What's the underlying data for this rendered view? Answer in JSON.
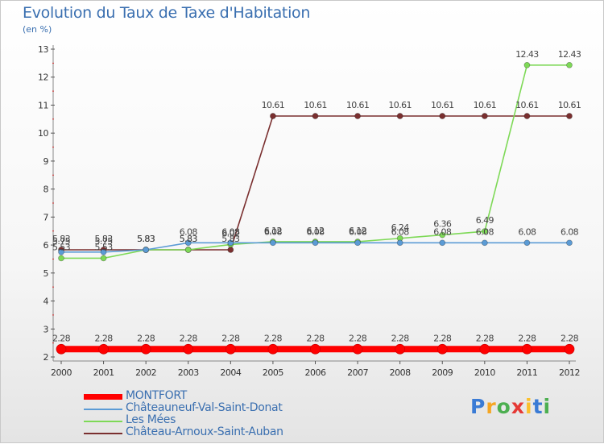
{
  "chart_data": {
    "type": "line",
    "title": "Evolution du Taux de Taxe d'Habitation",
    "subtitle": "(en %)",
    "xlabel": "",
    "ylabel": "",
    "ylim": [
      2,
      13
    ],
    "yticks": [
      "2",
      "3",
      "4",
      "5",
      "6",
      "7",
      "8",
      "9",
      "10",
      "11",
      "12",
      "13"
    ],
    "categories": [
      "2000",
      "2001",
      "2002",
      "2003",
      "2004",
      "2005",
      "2006",
      "2007",
      "2008",
      "2009",
      "2010",
      "2011",
      "2012"
    ],
    "grid": false,
    "legend_position": "bottom-left",
    "series": [
      {
        "name": "MONTFORT",
        "color": "#ff0000",
        "values": [
          2.28,
          2.28,
          2.28,
          2.28,
          2.28,
          2.28,
          2.28,
          2.28,
          2.28,
          2.28,
          2.28,
          2.28,
          2.28
        ],
        "labels": [
          "2.28",
          "2.28",
          "2.28",
          "2.28",
          "2.28",
          "2.28",
          "2.28",
          "2.28",
          "2.28",
          "2.28",
          "2.28",
          "2.28",
          "2.28"
        ]
      },
      {
        "name": "Châteauneuf-Val-Saint-Donat",
        "color": "#5b9bd5",
        "values": [
          5.75,
          5.75,
          5.83,
          6.08,
          6.08,
          6.08,
          6.08,
          6.08,
          6.08,
          6.08,
          6.08,
          6.08,
          6.08
        ],
        "labels": [
          "5.75",
          "5.75",
          "5.83",
          "6.08",
          "6.08",
          "6.08",
          "6.08",
          "6.08",
          "6.08",
          "6.08",
          "6.08",
          "6.08",
          "6.08"
        ]
      },
      {
        "name": "Les Mées",
        "color": "#7ed957",
        "values": [
          5.53,
          5.53,
          5.83,
          5.83,
          6.02,
          6.12,
          6.12,
          6.12,
          6.24,
          6.36,
          6.49,
          12.43,
          12.43
        ],
        "labels": [
          "5.53",
          "5.53",
          "5.83",
          "5.83",
          "6.02",
          "6.12",
          "6.12",
          "6.12",
          "6.24",
          "6.36",
          "6.49",
          "12.43",
          "12.43"
        ]
      },
      {
        "name": "Château-Arnoux-Saint-Auban",
        "color": "#7a2f2f",
        "values": [
          5.83,
          5.83,
          5.83,
          5.83,
          5.83,
          10.61,
          10.61,
          10.61,
          10.61,
          10.61,
          10.61,
          10.61,
          10.61
        ],
        "labels": [
          "5.83",
          "5.83",
          "5.83",
          "5.83",
          "5.83",
          "10.61",
          "10.61",
          "10.61",
          "10.61",
          "10.61",
          "10.61",
          "10.61",
          "10.61"
        ]
      }
    ]
  },
  "brand": {
    "letters": [
      "P",
      "r",
      "o",
      "x",
      "i",
      "t",
      "i"
    ],
    "colors": [
      "#3a7bd5",
      "#f5a623",
      "#4caf50",
      "#e53935",
      "#fbc02d",
      "#3a7bd5",
      "#4caf50"
    ]
  }
}
